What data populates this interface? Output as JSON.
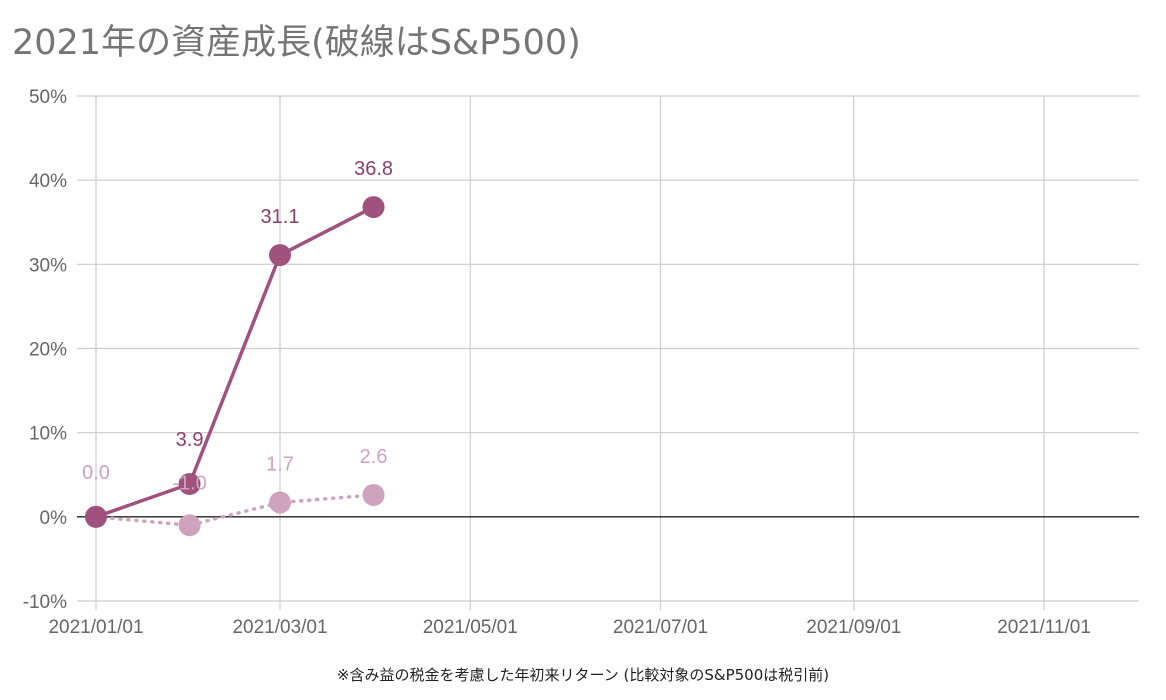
{
  "chart_data": {
    "type": "line",
    "title": "2021年の資産成長(破線はS&P500)",
    "x_ticks": [
      "2021/01/01",
      "2021/03/01",
      "2021/05/01",
      "2021/07/01",
      "2021/09/01",
      "2021/11/01"
    ],
    "xlim": [
      "2021-01-01",
      "2021-12-15"
    ],
    "y_ticks": [
      "-10%",
      "0%",
      "10%",
      "20%",
      "30%",
      "40%",
      "50%"
    ],
    "ylim": [
      -10,
      50
    ],
    "grid": true,
    "series": [
      {
        "style": "solid",
        "color": "#a0527e",
        "label_color": "#8f3e6b",
        "x": [
          "2021-01-01",
          "2021-01-31",
          "2021-03-01",
          "2021-03-31"
        ],
        "values": [
          0.0,
          3.9,
          31.1,
          36.8
        ],
        "labels": [
          "",
          "3.9",
          "31.1",
          "36.8"
        ]
      },
      {
        "style": "dotted",
        "color": "#cfa3bd",
        "label_color": "#cfa3bd",
        "x": [
          "2021-01-01",
          "2021-01-31",
          "2021-03-01",
          "2021-03-31"
        ],
        "values": [
          0.0,
          -1.0,
          1.7,
          2.6
        ],
        "labels": [
          "0.0",
          "-1.0",
          "1.7",
          "2.6"
        ]
      }
    ],
    "footnote": "※含み益の税金を考慮した年初来リターン (比較対象のS&P500は税引前)"
  }
}
